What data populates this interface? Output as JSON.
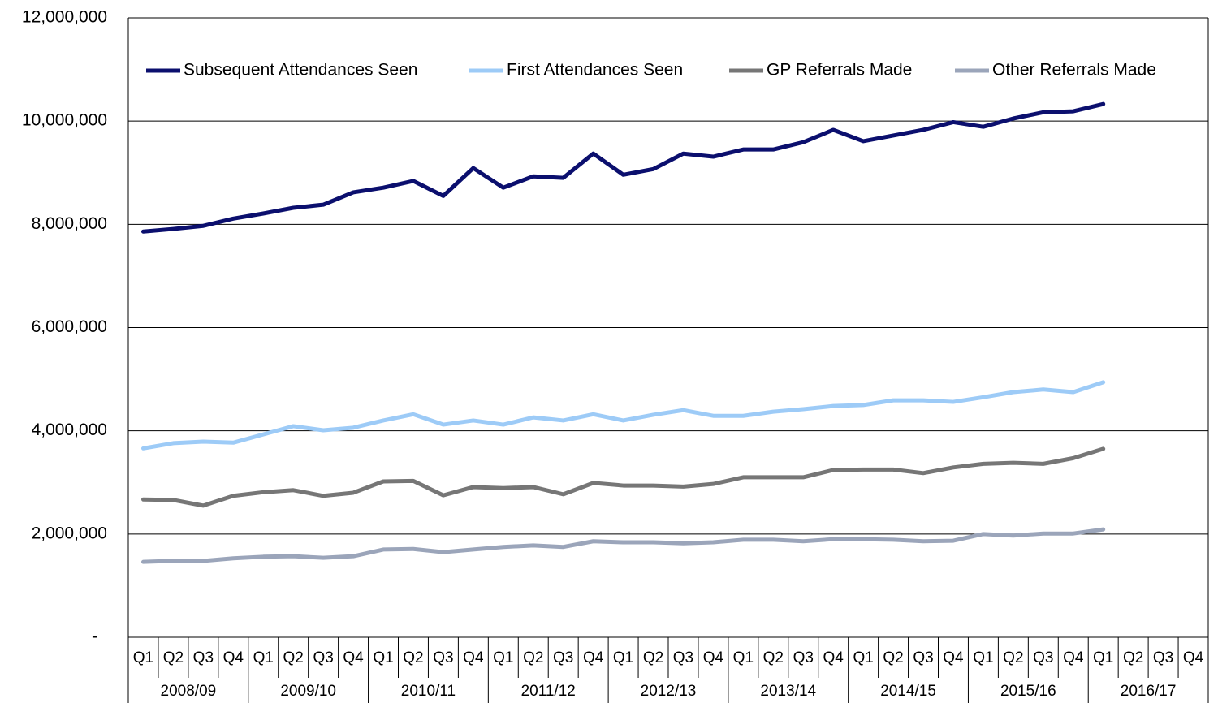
{
  "chart_data": {
    "type": "line",
    "categories": [
      "Q1",
      "Q2",
      "Q3",
      "Q4",
      "Q1",
      "Q2",
      "Q3",
      "Q4",
      "Q1",
      "Q2",
      "Q3",
      "Q4",
      "Q1",
      "Q2",
      "Q3",
      "Q4",
      "Q1",
      "Q2",
      "Q3",
      "Q4",
      "Q1",
      "Q2",
      "Q3",
      "Q4",
      "Q1",
      "Q2",
      "Q3",
      "Q4",
      "Q1",
      "Q2",
      "Q3",
      "Q4",
      "Q1",
      "Q2",
      "Q3",
      "Q4"
    ],
    "groups": [
      "2008/09",
      "2009/10",
      "2010/11",
      "2011/12",
      "2012/13",
      "2013/14",
      "2014/15",
      "2015/16",
      "2016/17"
    ],
    "series": [
      {
        "name": "Subsequent Attendances Seen",
        "color": "#0b0f6e",
        "values": [
          7860000,
          7910000,
          7970000,
          8110000,
          8210000,
          8320000,
          8380000,
          8620000,
          8710000,
          8840000,
          8550000,
          9090000,
          8710000,
          8930000,
          8900000,
          9370000,
          8960000,
          9070000,
          9370000,
          9310000,
          9450000,
          9450000,
          9590000,
          9830000,
          9610000,
          9720000,
          9830000,
          9980000,
          9890000,
          10050000,
          10170000,
          10190000,
          10330000,
          null,
          null,
          null
        ]
      },
      {
        "name": "First Attendances Seen",
        "color": "#9dcbf7",
        "values": [
          3660000,
          3760000,
          3790000,
          3770000,
          3930000,
          4090000,
          4010000,
          4060000,
          4200000,
          4320000,
          4120000,
          4200000,
          4120000,
          4260000,
          4200000,
          4320000,
          4200000,
          4310000,
          4400000,
          4290000,
          4290000,
          4370000,
          4420000,
          4480000,
          4500000,
          4590000,
          4590000,
          4560000,
          4650000,
          4750000,
          4800000,
          4750000,
          4940000,
          null,
          null,
          null
        ]
      },
      {
        "name": "GP Referrals Made",
        "color": "#767676",
        "values": [
          2670000,
          2660000,
          2550000,
          2740000,
          2810000,
          2850000,
          2740000,
          2800000,
          3020000,
          3030000,
          2750000,
          2910000,
          2890000,
          2910000,
          2770000,
          2990000,
          2940000,
          2940000,
          2920000,
          2970000,
          3100000,
          3100000,
          3100000,
          3240000,
          3250000,
          3250000,
          3180000,
          3290000,
          3360000,
          3380000,
          3360000,
          3470000,
          3650000,
          null,
          null,
          null
        ]
      },
      {
        "name": "Other Referrals Made",
        "color": "#9ba5ba",
        "values": [
          1460000,
          1480000,
          1480000,
          1530000,
          1560000,
          1570000,
          1540000,
          1570000,
          1700000,
          1710000,
          1650000,
          1700000,
          1750000,
          1780000,
          1750000,
          1860000,
          1840000,
          1840000,
          1820000,
          1840000,
          1890000,
          1890000,
          1860000,
          1900000,
          1900000,
          1890000,
          1860000,
          1870000,
          2000000,
          1970000,
          2010000,
          2010000,
          2090000,
          null,
          null,
          null
        ]
      }
    ],
    "ylim": [
      0,
      12000000
    ],
    "yticks": [
      {
        "value": 0,
        "label": "-"
      },
      {
        "value": 2000000,
        "label": "2,000,000"
      },
      {
        "value": 4000000,
        "label": "4,000,000"
      },
      {
        "value": 6000000,
        "label": "6,000,000"
      },
      {
        "value": 8000000,
        "label": "8,000,000"
      },
      {
        "value": 10000000,
        "label": "10,000,000"
      },
      {
        "value": 12000000,
        "label": "12,000,000"
      }
    ],
    "grid": true,
    "legend": "top"
  }
}
